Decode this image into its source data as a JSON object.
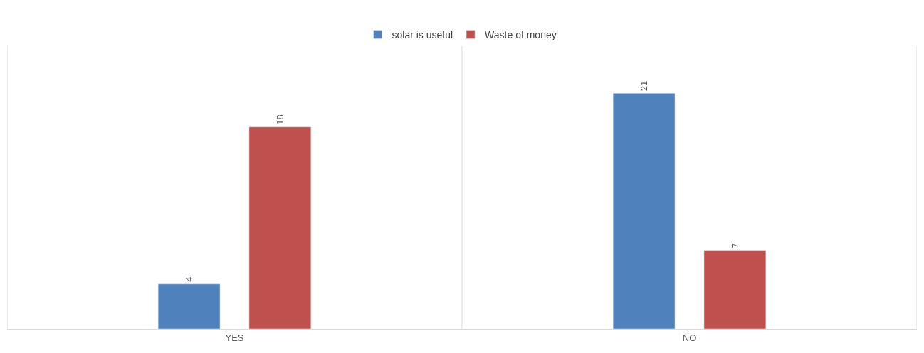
{
  "chart_data": {
    "type": "bar",
    "categories": [
      "YES",
      "NO"
    ],
    "series": [
      {
        "name": "solar is useful",
        "color": "#4f81bd",
        "values": [
          4,
          21
        ]
      },
      {
        "name": "Waste of money",
        "color": "#c0504d",
        "values": [
          18,
          7
        ]
      }
    ],
    "data_labels": true,
    "legend": "top"
  }
}
